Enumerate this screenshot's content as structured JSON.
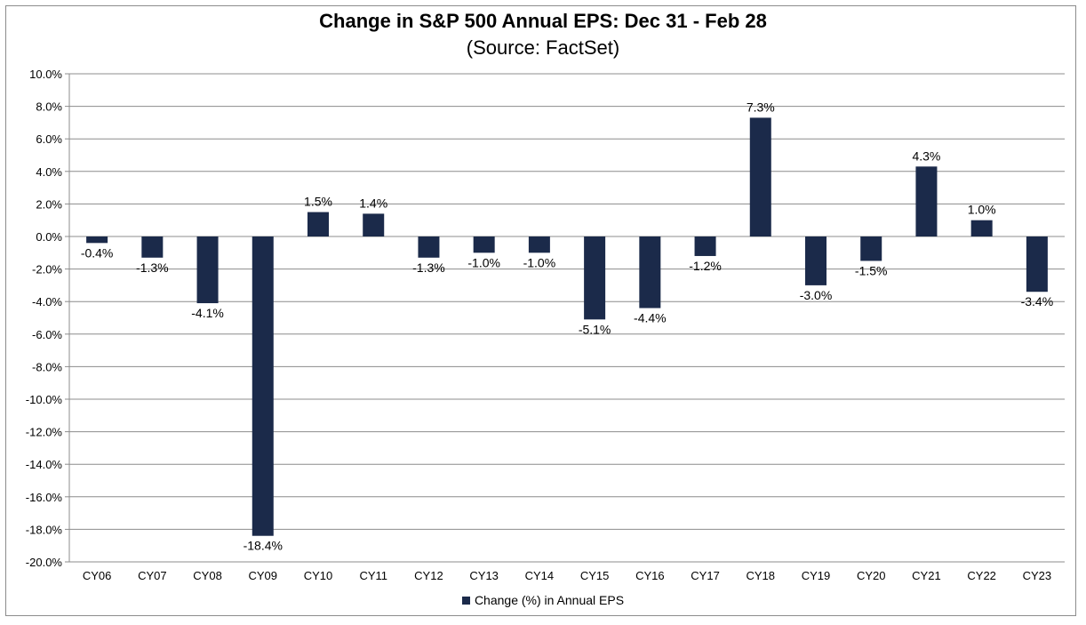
{
  "chart_data": {
    "type": "bar",
    "title": "Change in S&P 500 Annual EPS: Dec 31 - Feb 28",
    "subtitle": "(Source: FactSet)",
    "categories": [
      "CY06",
      "CY07",
      "CY08",
      "CY09",
      "CY10",
      "CY11",
      "CY12",
      "CY13",
      "CY14",
      "CY15",
      "CY16",
      "CY17",
      "CY18",
      "CY19",
      "CY20",
      "CY21",
      "CY22",
      "CY23"
    ],
    "series": [
      {
        "name": "Change (%) in Annual EPS",
        "values": [
          -0.4,
          -1.3,
          -4.1,
          -18.4,
          1.5,
          1.4,
          -1.3,
          -1.0,
          -1.0,
          -5.1,
          -4.4,
          -1.2,
          7.3,
          -3.0,
          -1.5,
          4.3,
          1.0,
          -3.4
        ],
        "labels": [
          "-0.4%",
          "-1.3%",
          "-4.1%",
          "-18.4%",
          "1.5%",
          "1.4%",
          "-1.3%",
          "-1.0%",
          "-1.0%",
          "-5.1%",
          "-4.4%",
          "-1.2%",
          "7.3%",
          "-3.0%",
          "-1.5%",
          "4.3%",
          "1.0%",
          "-3.4%"
        ],
        "color": "#1b2a4a"
      }
    ],
    "ylim": [
      -20,
      10
    ],
    "yticks": [
      10,
      8,
      6,
      4,
      2,
      0,
      -2,
      -4,
      -6,
      -8,
      -10,
      -12,
      -14,
      -16,
      -18,
      -20
    ],
    "ytick_labels": [
      "10.0%",
      "8.0%",
      "6.0%",
      "4.0%",
      "2.0%",
      "0.0%",
      "-2.0%",
      "-4.0%",
      "-6.0%",
      "-8.0%",
      "-10.0%",
      "-12.0%",
      "-14.0%",
      "-16.0%",
      "-18.0%",
      "-20.0%"
    ],
    "xlabel": "",
    "ylabel": "",
    "grid": true,
    "legend_position": "bottom"
  }
}
